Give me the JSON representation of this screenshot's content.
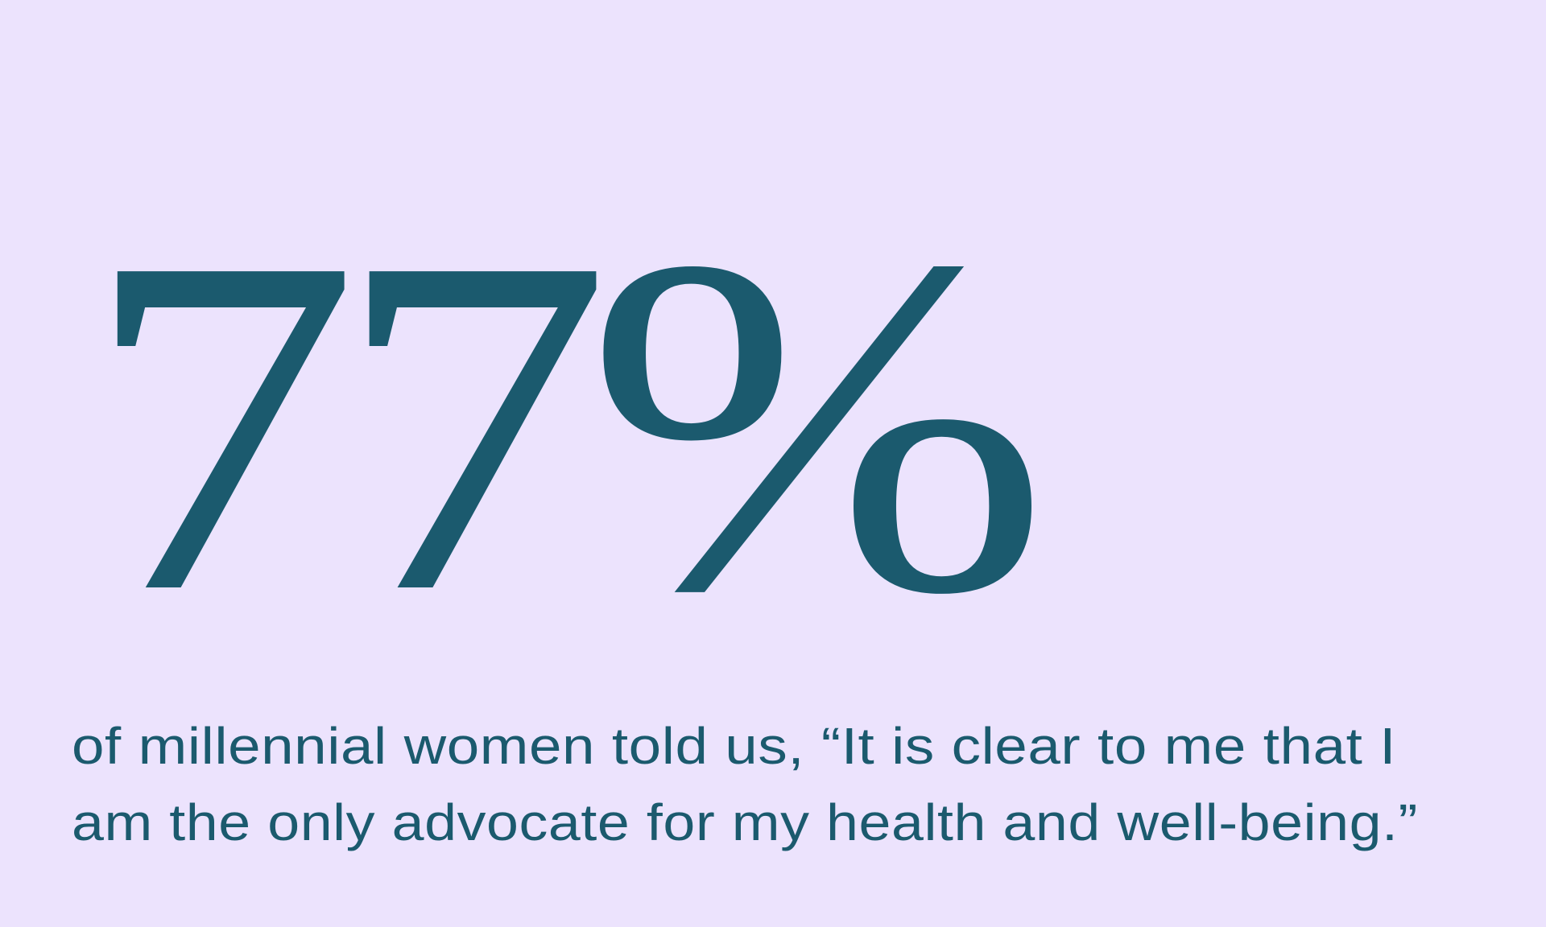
{
  "colors": {
    "background": "#ece3fd",
    "text": "#1b5a6e"
  },
  "stat": {
    "value": "77%"
  },
  "caption": {
    "lines": [
      "of millennial women told us, “It is clear to me that I",
      "am the only advocate for my health and well-being.”"
    ]
  }
}
